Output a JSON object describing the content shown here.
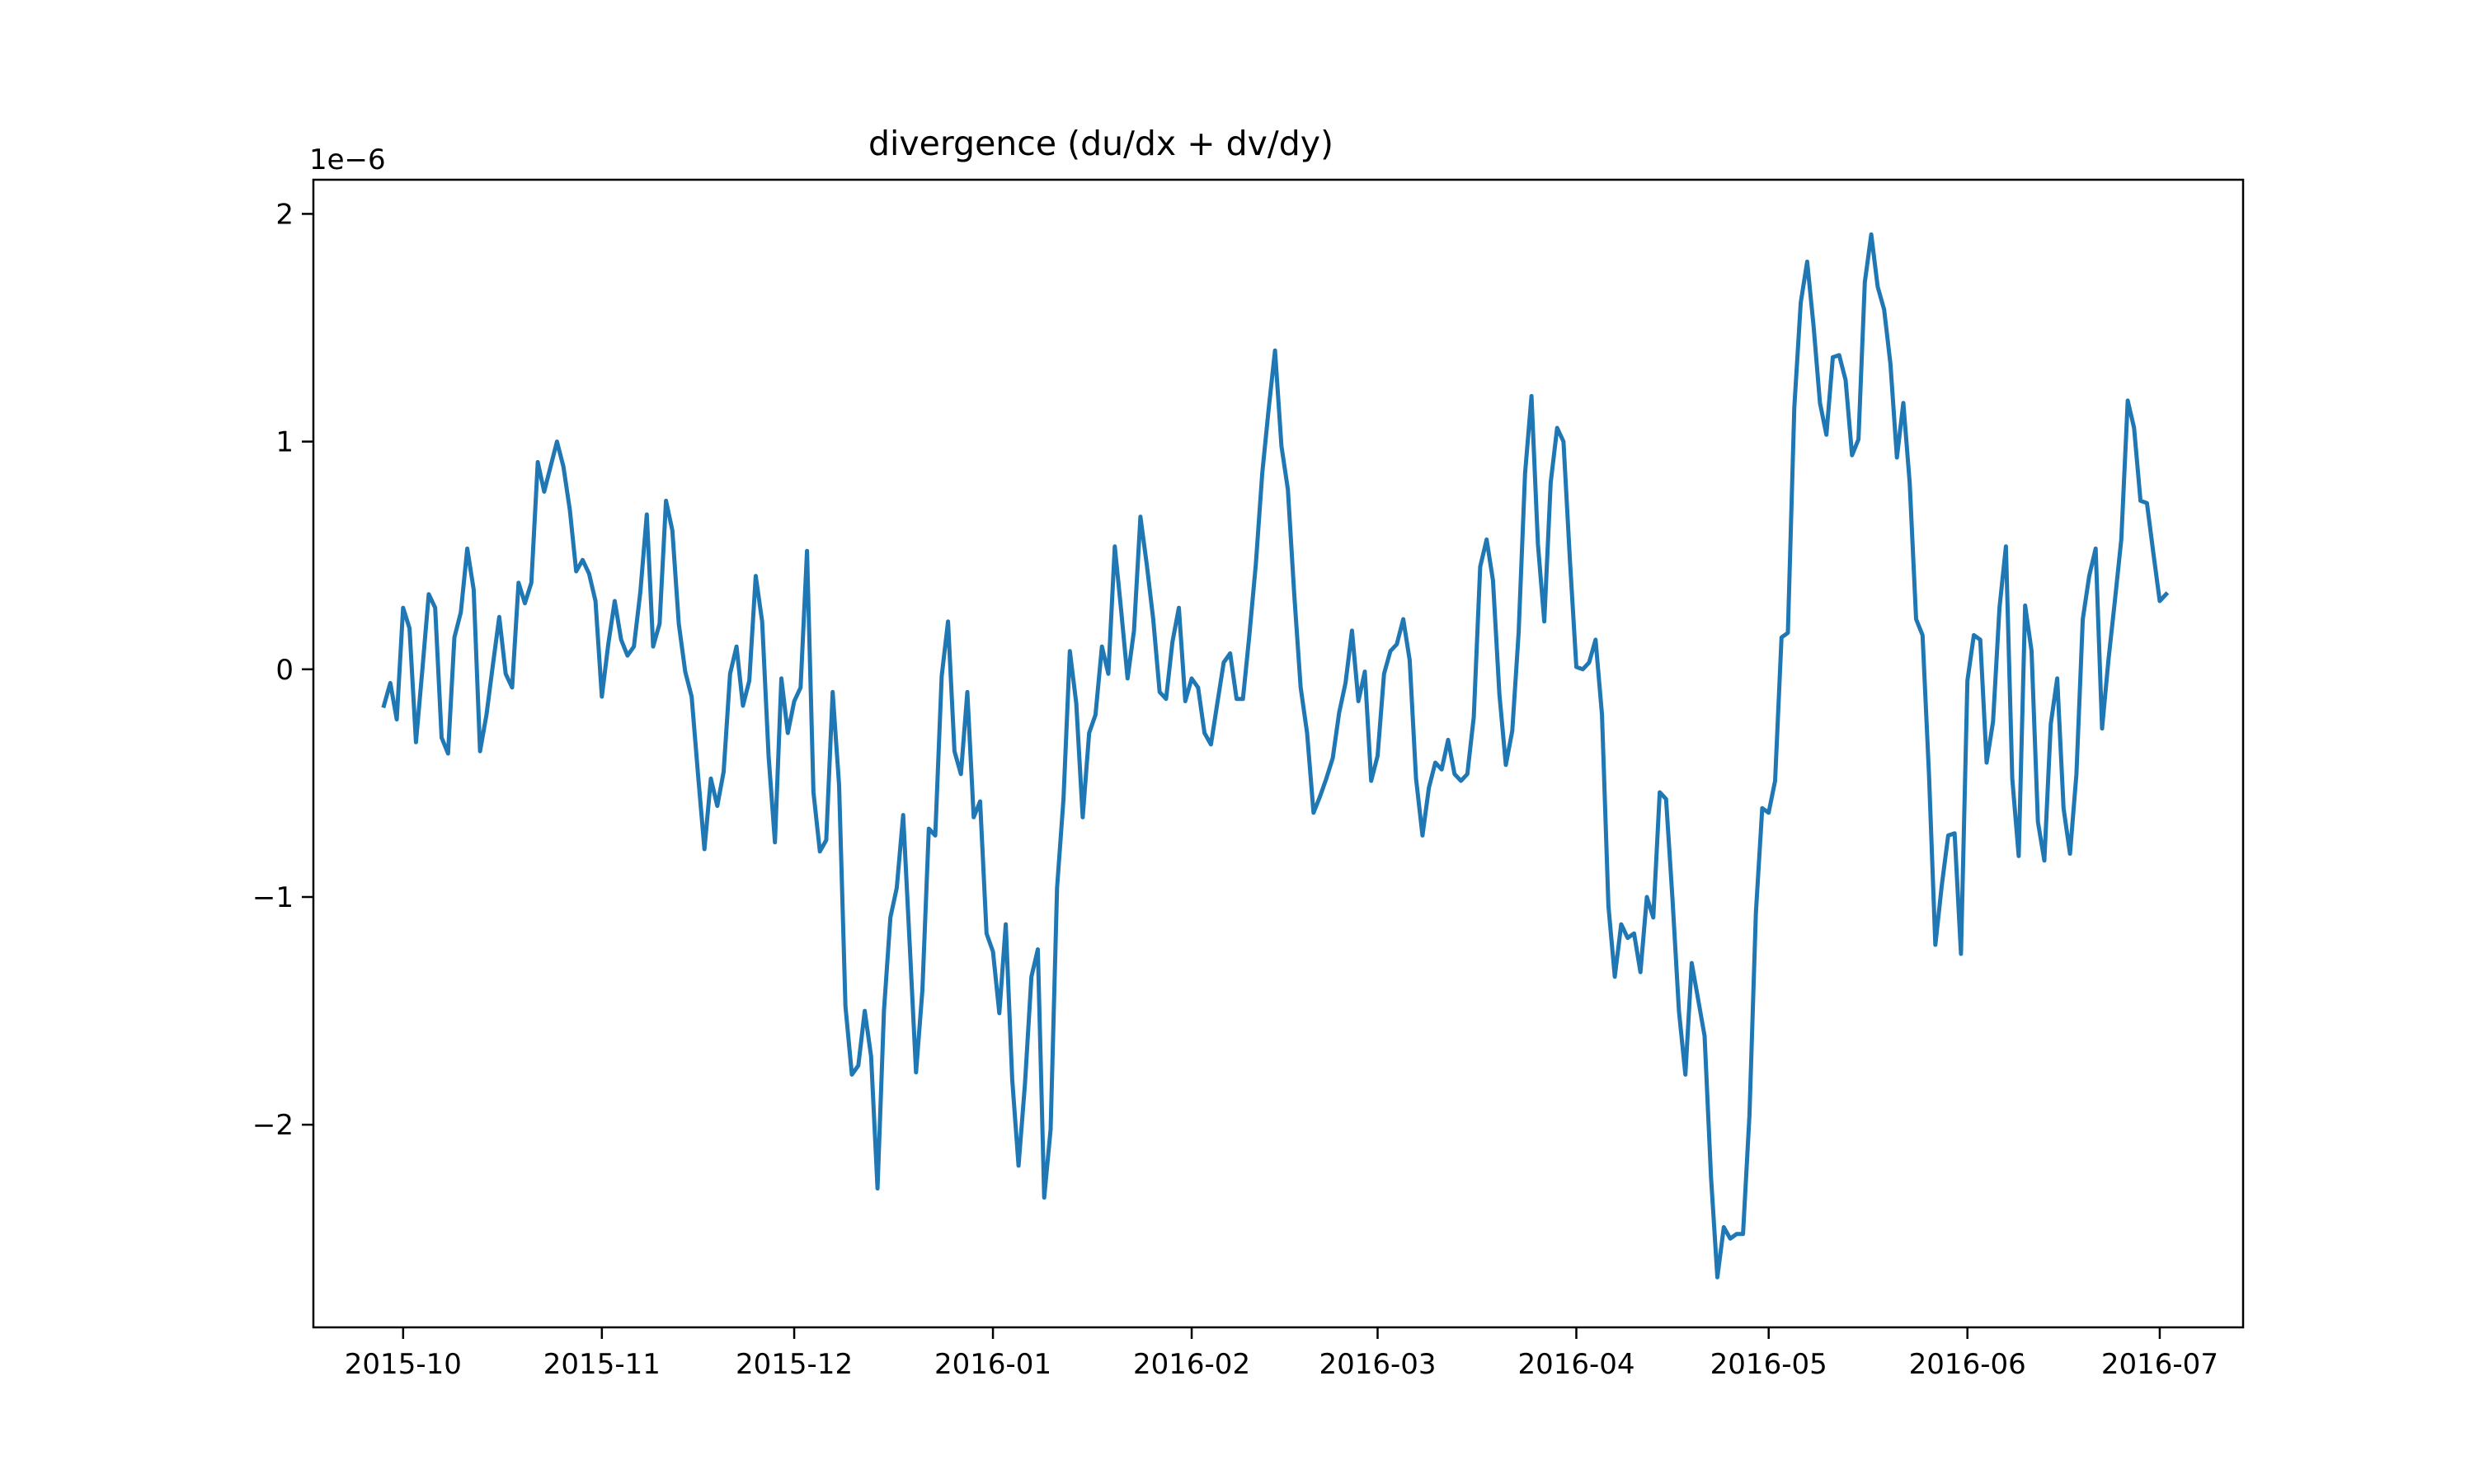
{
  "chart_data": {
    "type": "line",
    "title": "divergence (du/dx + dv/dy)",
    "xlabel": "",
    "ylabel": "",
    "y_offset_label": "1e−6",
    "y_scale": 1e-06,
    "grid": false,
    "legend": "none",
    "xlim": [
      "2015-09-17",
      "2016-07-14"
    ],
    "ylim": [
      -2.89,
      2.15
    ],
    "x_ticks": [
      {
        "date": "2015-10-01",
        "label": "2015-10"
      },
      {
        "date": "2015-11-01",
        "label": "2015-11"
      },
      {
        "date": "2015-12-01",
        "label": "2015-12"
      },
      {
        "date": "2016-01-01",
        "label": "2016-01"
      },
      {
        "date": "2016-02-01",
        "label": "2016-02"
      },
      {
        "date": "2016-03-01",
        "label": "2016-03"
      },
      {
        "date": "2016-04-01",
        "label": "2016-04"
      },
      {
        "date": "2016-05-01",
        "label": "2016-05"
      },
      {
        "date": "2016-06-01",
        "label": "2016-06"
      },
      {
        "date": "2016-07-01",
        "label": "2016-07"
      }
    ],
    "y_ticks": [
      {
        "value": 2,
        "label": "2"
      },
      {
        "value": 1,
        "label": "1"
      },
      {
        "value": 0,
        "label": "0"
      },
      {
        "value": -1,
        "label": "−1"
      },
      {
        "value": -2,
        "label": "−2"
      }
    ],
    "series": [
      {
        "color": "#1f77b4",
        "start_date": "2015-09-28",
        "step_days": 1,
        "values": [
          -0.16,
          -0.06,
          -0.22,
          0.27,
          0.18,
          -0.32,
          0.0,
          0.33,
          0.27,
          -0.3,
          -0.37,
          0.14,
          0.25,
          0.53,
          0.35,
          -0.36,
          -0.2,
          0.02,
          0.23,
          -0.02,
          -0.08,
          0.38,
          0.29,
          0.38,
          0.91,
          0.78,
          0.89,
          1.0,
          0.89,
          0.7,
          0.43,
          0.48,
          0.42,
          0.3,
          -0.12,
          0.11,
          0.3,
          0.13,
          0.06,
          0.1,
          0.34,
          0.68,
          0.1,
          0.2,
          0.74,
          0.61,
          0.2,
          -0.01,
          -0.12,
          -0.46,
          -0.79,
          -0.48,
          -0.6,
          -0.45,
          -0.02,
          0.1,
          -0.16,
          -0.05,
          0.41,
          0.21,
          -0.38,
          -0.76,
          -0.04,
          -0.28,
          -0.14,
          -0.08,
          0.52,
          -0.54,
          -0.8,
          -0.75,
          -0.1,
          -0.51,
          -1.48,
          -1.78,
          -1.74,
          -1.5,
          -1.7,
          -2.28,
          -1.5,
          -1.09,
          -0.96,
          -0.64,
          -1.2,
          -1.77,
          -1.41,
          -0.7,
          -0.73,
          -0.03,
          0.21,
          -0.36,
          -0.46,
          -0.1,
          -0.65,
          -0.58,
          -1.16,
          -1.24,
          -1.51,
          -1.12,
          -1.8,
          -2.18,
          -1.82,
          -1.35,
          -1.23,
          -2.32,
          -2.02,
          -0.96,
          -0.57,
          0.08,
          -0.15,
          -0.65,
          -0.28,
          -0.2,
          0.1,
          -0.02,
          0.54,
          0.26,
          -0.04,
          0.17,
          0.67,
          0.46,
          0.22,
          -0.1,
          -0.13,
          0.12,
          0.27,
          -0.14,
          -0.04,
          -0.08,
          -0.28,
          -0.33,
          -0.15,
          0.03,
          0.07,
          -0.13,
          -0.13,
          0.15,
          0.46,
          0.86,
          1.14,
          1.4,
          0.98,
          0.79,
          0.33,
          -0.08,
          -0.28,
          -0.63,
          -0.56,
          -0.48,
          -0.39,
          -0.19,
          -0.06,
          0.17,
          -0.14,
          -0.01,
          -0.49,
          -0.38,
          -0.02,
          0.08,
          0.11,
          0.22,
          0.04,
          -0.48,
          -0.73,
          -0.52,
          -0.41,
          -0.44,
          -0.31,
          -0.46,
          -0.49,
          -0.46,
          -0.21,
          0.45,
          0.57,
          0.39,
          -0.11,
          -0.42,
          -0.27,
          0.16,
          0.86,
          1.2,
          0.55,
          0.21,
          0.82,
          1.06,
          1.0,
          0.48,
          0.01,
          0.0,
          0.03,
          0.13,
          -0.2,
          -1.04,
          -1.35,
          -1.12,
          -1.18,
          -1.16,
          -1.33,
          -1.0,
          -1.09,
          -0.54,
          -0.57,
          -1.01,
          -1.5,
          -1.78,
          -1.29,
          -1.45,
          -1.61,
          -2.23,
          -2.67,
          -2.45,
          -2.5,
          -2.48,
          -2.48,
          -1.96,
          -1.07,
          -0.61,
          -0.63,
          -0.49,
          0.14,
          0.16,
          1.15,
          1.61,
          1.79,
          1.51,
          1.17,
          1.03,
          1.37,
          1.38,
          1.27,
          0.94,
          1.01,
          1.7,
          1.91,
          1.68,
          1.58,
          1.34,
          0.93,
          1.17,
          0.82,
          0.22,
          0.15,
          -0.46,
          -1.21,
          -0.95,
          -0.73,
          -0.72,
          -1.25,
          -0.05,
          0.15,
          0.13,
          -0.41,
          -0.23,
          0.27,
          0.54,
          -0.48,
          -0.82,
          0.28,
          0.08,
          -0.67,
          -0.84,
          -0.24,
          -0.04,
          -0.61,
          -0.81,
          -0.46,
          0.22,
          0.41,
          0.53,
          -0.26,
          0.04,
          0.3,
          0.57,
          1.18,
          1.06,
          0.74,
          0.73,
          0.51,
          0.3,
          0.33
        ]
      }
    ]
  }
}
